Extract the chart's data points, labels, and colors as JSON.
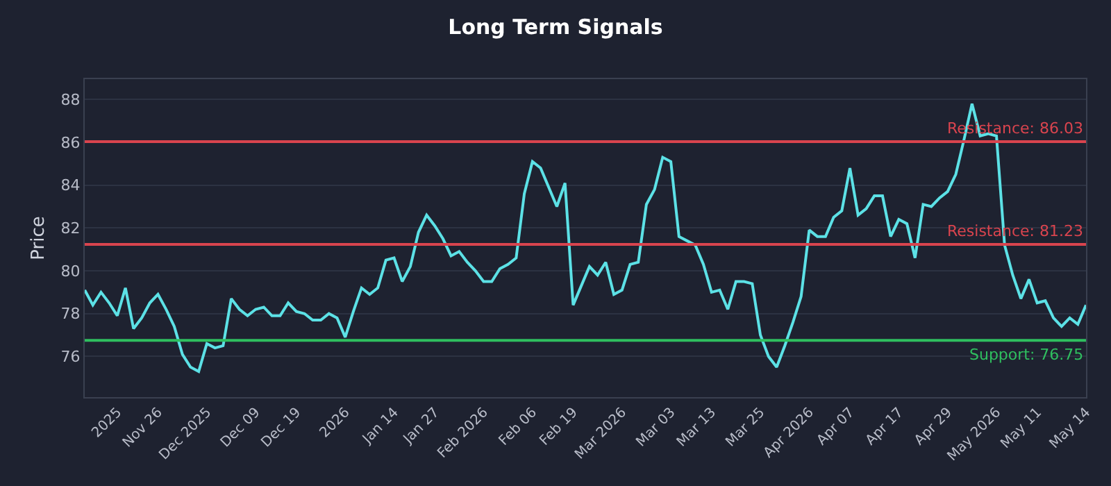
{
  "chart_data": {
    "type": "line",
    "title": "Long Term Signals",
    "ylabel": "Price",
    "categories": [
      null,
      null,
      null,
      null,
      "2025",
      null,
      null,
      null,
      null,
      "Nov 26",
      null,
      null,
      null,
      null,
      null,
      "Dec 2025",
      null,
      null,
      null,
      null,
      null,
      "Dec 09",
      null,
      null,
      null,
      null,
      "Dec 19",
      null,
      null,
      null,
      null,
      null,
      "2026",
      null,
      null,
      null,
      null,
      null,
      "Jan 14",
      null,
      null,
      null,
      null,
      "Jan 27",
      null,
      null,
      null,
      null,
      null,
      "Feb 2026",
      null,
      null,
      null,
      null,
      null,
      "Feb 06",
      null,
      null,
      null,
      null,
      "Feb 19",
      null,
      null,
      null,
      null,
      null,
      "Mar 2026",
      null,
      null,
      null,
      null,
      null,
      "Mar 03",
      null,
      null,
      null,
      null,
      "Mar 13",
      null,
      null,
      null,
      null,
      null,
      "Mar 25",
      null,
      null,
      null,
      null,
      null,
      "Apr 2026",
      null,
      null,
      null,
      null,
      "Apr 07",
      null,
      null,
      null,
      null,
      null,
      "Apr 17",
      null,
      null,
      null,
      null,
      null,
      "Apr 29",
      null,
      null,
      null,
      null,
      null,
      "May 2026",
      null,
      null,
      null,
      null,
      "May 11",
      null,
      null,
      null,
      null,
      null,
      "May 14"
    ],
    "series": [
      {
        "color": "#5ce1e6",
        "values": [
          79.1,
          78.4,
          79.0,
          78.5,
          77.9,
          79.2,
          77.3,
          77.8,
          78.5,
          78.9,
          78.2,
          77.4,
          76.1,
          75.5,
          75.3,
          76.6,
          76.4,
          76.5,
          78.7,
          78.2,
          77.9,
          78.2,
          78.3,
          77.9,
          77.9,
          78.5,
          78.1,
          78.0,
          77.7,
          77.7,
          78.0,
          77.8,
          76.9,
          78.1,
          79.2,
          78.9,
          79.2,
          80.5,
          80.6,
          79.5,
          80.2,
          81.8,
          82.6,
          82.1,
          81.5,
          80.7,
          80.9,
          80.4,
          80.0,
          79.5,
          79.5,
          80.1,
          80.3,
          80.6,
          83.6,
          85.1,
          84.8,
          83.9,
          83.0,
          84.1,
          78.4,
          79.3,
          80.2,
          79.8,
          80.4,
          78.9,
          79.1,
          80.3,
          80.4,
          83.1,
          83.8,
          85.3,
          85.1,
          81.6,
          81.4,
          81.2,
          80.3,
          79.0,
          79.1,
          78.2,
          79.5,
          79.5,
          79.4,
          77.0,
          76.0,
          75.5,
          76.5,
          77.6,
          78.8,
          81.9,
          81.6,
          81.6,
          82.5,
          82.8,
          84.8,
          82.6,
          82.9,
          83.5,
          83.5,
          81.6,
          82.4,
          82.2,
          80.6,
          83.1,
          83.0,
          83.4,
          83.7,
          84.5,
          86.1,
          87.8,
          86.3,
          86.4,
          86.3,
          81.2,
          79.8,
          78.7,
          79.6,
          78.5,
          78.6,
          77.8,
          77.4,
          77.8,
          77.5,
          78.4
        ]
      }
    ],
    "ylim": [
      74.1,
      88.95
    ],
    "yticks": [
      76,
      78,
      80,
      82,
      84,
      86,
      88
    ],
    "grid": "y",
    "marker": "none",
    "line_style": "solid",
    "ref_lines": [
      {
        "axis": "y",
        "value": 86.03,
        "label": "Resistance: 86.03",
        "color": "#d9444e"
      },
      {
        "axis": "y",
        "value": 81.23,
        "label": "Resistance: 81.23",
        "color": "#d9444e"
      },
      {
        "axis": "y",
        "value": 76.75,
        "label": "Support: 76.75",
        "color": "#2fbf5f"
      }
    ]
  }
}
